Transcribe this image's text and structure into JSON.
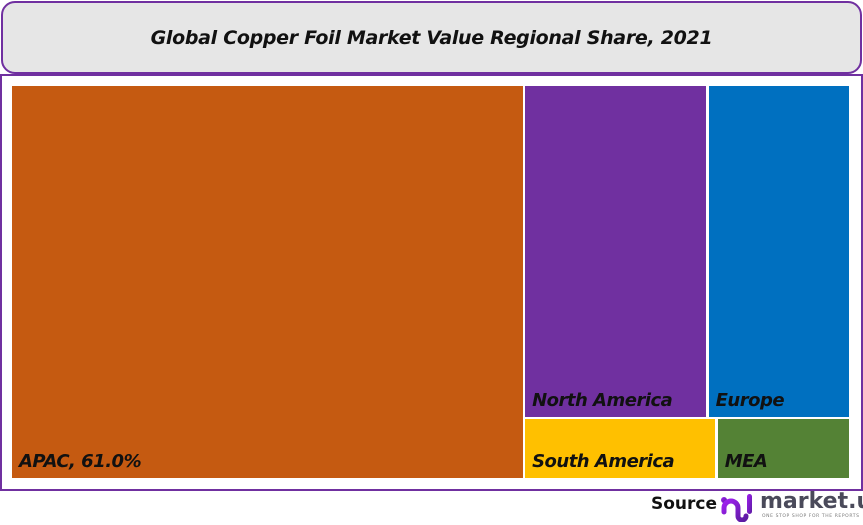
{
  "chart_data": {
    "type": "treemap",
    "title": "Global Copper Foil Market Value Regional Share, 2021",
    "unit": "%",
    "items": [
      {
        "label": "APAC, 61.0%",
        "name": "APAC",
        "value": 61.0,
        "color": "#c55a11"
      },
      {
        "label": "North America",
        "name": "North America",
        "value": 18.5,
        "color": "#7030a0"
      },
      {
        "label": "Europe",
        "name": "Europe",
        "value": 14.4,
        "color": "#0070c0"
      },
      {
        "label": "South America",
        "name": "South America",
        "value": 3.6,
        "color": "#ffc000"
      },
      {
        "label": "MEA",
        "name": "MEA",
        "value": 2.5,
        "color": "#548235"
      }
    ]
  },
  "footer": {
    "source_label": "Source",
    "brand": "market.us",
    "tagline": "ONE STOP SHOP FOR THE REPORTS"
  },
  "colors": {
    "frame": "#7030a0",
    "title_bg": "#e6e6e6"
  }
}
